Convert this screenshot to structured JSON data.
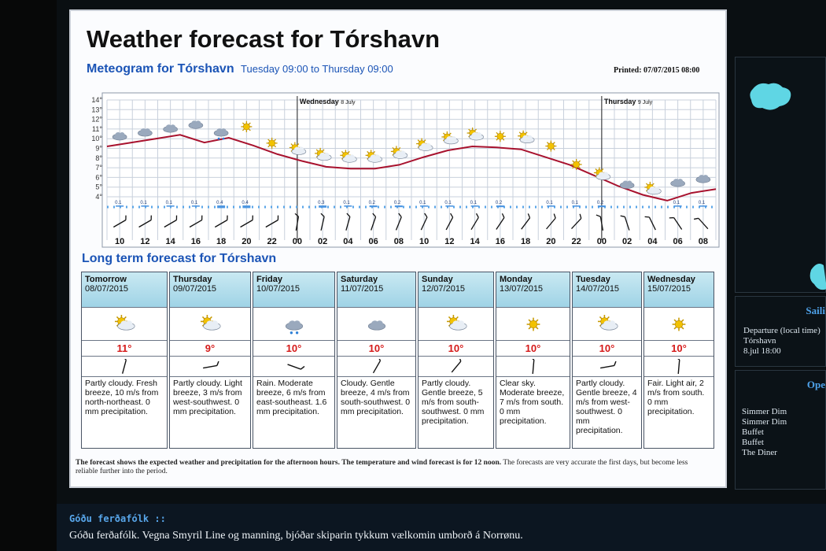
{
  "header": {
    "title": "Weather forecast for Tórshavn",
    "printed": "Printed: 07/07/2015 08:00",
    "meteogram_title": "Meteogram for Tórshavn",
    "meteogram_range": "Tuesday 09:00 to Thursday 09:00"
  },
  "meteogram": {
    "day_labels": [
      {
        "label": "Wednesday",
        "sub": "8 July"
      },
      {
        "label": "Thursday",
        "sub": "9 July"
      }
    ],
    "y_ticks": [
      "14°",
      "13°",
      "12°",
      "11°",
      "10°",
      "9°",
      "8°",
      "7°",
      "6°",
      "5°",
      "4°"
    ],
    "x_hours": [
      "10",
      "12",
      "14",
      "16",
      "18",
      "20",
      "22",
      "00",
      "02",
      "04",
      "06",
      "08",
      "10",
      "12",
      "14",
      "16",
      "18",
      "20",
      "22",
      "00",
      "02",
      "04",
      "06",
      "08"
    ],
    "temperature": [
      9.2,
      9.6,
      10.0,
      10.4,
      9.6,
      10.1,
      9.3,
      8.4,
      7.7,
      7.1,
      6.9,
      6.9,
      7.3,
      8.1,
      8.8,
      9.2,
      9.1,
      8.9,
      8.1,
      7.3,
      6.2,
      5.1,
      4.2,
      3.6,
      4.4,
      4.8
    ],
    "sky": [
      "cloud",
      "cloud",
      "cloud",
      "cloud",
      "rain-cloud",
      "sun",
      "sun",
      "partly-cloudy",
      "partly-cloudy",
      "partly-cloudy",
      "partly-cloudy",
      "partly-cloudy",
      "partly-cloudy",
      "partly-cloudy",
      "partly-cloudy",
      "sun",
      "partly-cloudy",
      "sun",
      "sun",
      "partly-cloudy",
      "cloud",
      "partly-cloudy",
      "cloud",
      "cloud"
    ],
    "precip": [
      "0.1",
      "0.1",
      "0.1",
      "0.1",
      "0.4",
      "0.4",
      "",
      "",
      "0.3",
      "0.1",
      "0.2",
      "0.2",
      "0.1",
      "0.1",
      "0.1",
      "0.2",
      "",
      "0.1",
      "0.1",
      "0.2",
      "",
      "",
      "0.1",
      "0.1"
    ]
  },
  "long_term": {
    "title": "Long term forecast for Tórshavn",
    "days": [
      {
        "day": "Tomorrow",
        "date": "08/07/2015",
        "icon": "partly-cloudy",
        "temp": "11°",
        "text": "Partly cloudy. Fresh breeze, 10 m/s from north-northeast. 0 mm precipitation."
      },
      {
        "day": "Thursday",
        "date": "09/07/2015",
        "icon": "partly-cloudy",
        "temp": "9°",
        "text": "Partly cloudy. Light breeze, 3 m/s from west-southwest. 0 mm precipitation."
      },
      {
        "day": "Friday",
        "date": "10/07/2015",
        "icon": "rain-cloud",
        "temp": "10°",
        "text": "Rain. Moderate breeze, 6 m/s from east-southeast. 1.6 mm precipitation."
      },
      {
        "day": "Saturday",
        "date": "11/07/2015",
        "icon": "cloud",
        "temp": "10°",
        "text": "Cloudy. Gentle breeze, 4 m/s from south-southwest. 0 mm precipitation."
      },
      {
        "day": "Sunday",
        "date": "12/07/2015",
        "icon": "partly-cloudy",
        "temp": "10°",
        "text": "Partly cloudy. Gentle breeze, 5 m/s from south-southwest. 0 mm precipitation."
      },
      {
        "day": "Monday",
        "date": "13/07/2015",
        "icon": "sun",
        "temp": "10°",
        "text": "Clear sky. Moderate breeze, 7 m/s from south. 0 mm precipitation."
      },
      {
        "day": "Tuesday",
        "date": "14/07/2015",
        "icon": "partly-cloudy",
        "temp": "10°",
        "text": "Partly cloudy. Gentle breeze, 4 m/s from west-southwest. 0 mm precipitation."
      },
      {
        "day": "Wednesday",
        "date": "15/07/2015",
        "icon": "sun",
        "temp": "10°",
        "text": "Fair. Light air, 2 m/s from south. 0 mm precipitation."
      }
    ]
  },
  "footnote": {
    "bold": "The forecast shows the expected weather and precipitation for the afternoon hours. The temperature and wind forecast is for 12 noon.",
    "normal": "The forecasts are very accurate the first days, but become less reliable further into the period."
  },
  "side": {
    "sailing_header": "Saili",
    "departure_label": "Departure (local time)",
    "departure_place": "Tórshavn",
    "departure_time": "8.jul 18:00",
    "open_header": "Ope",
    "venues": [
      "Simmer Dim",
      "Simmer Dim",
      "Buffet",
      "Buffet",
      "The Diner"
    ]
  },
  "ticker": {
    "heading": "Góðu ferðafólk",
    "symbol": "::",
    "message": "Góðu ferðafólk. Vegna Smyril Line og manning, bjóðar skiparin tykkum vælkomin umborð á Norrønu."
  },
  "colors": {
    "temperature_line": "#a8122e",
    "header_blue": "#1b54b6",
    "temp_text": "#d51a1a",
    "sky_header": "#aedcec"
  }
}
